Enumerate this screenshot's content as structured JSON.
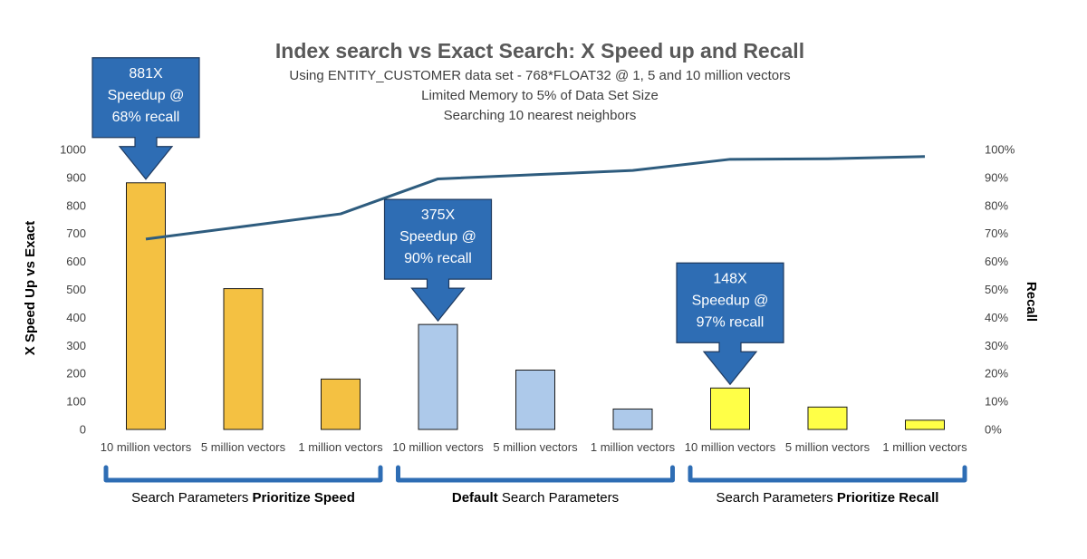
{
  "chart_data": {
    "type": "bar",
    "title": "Index search vs Exact Search: X Speed up and Recall",
    "subtitle_lines": [
      "Using ENTITY_CUSTOMER data set -  768*FLOAT32 @ 1, 5 and 10 million vectors",
      "Limited Memory to 5% of Data Set Size",
      "Searching 10 nearest neighbors"
    ],
    "categories": [
      "10 million vectors",
      "5 million vectors",
      "1 million vectors",
      "10 million vectors",
      "5 million vectors",
      "1 million vectors",
      "10 million vectors",
      "5 million vectors",
      "1 million vectors"
    ],
    "series": [
      {
        "type": "bar",
        "values": [
          881,
          503,
          180,
          375,
          212,
          73,
          148,
          80,
          33
        ],
        "colors": [
          "#F4C142",
          "#F4C142",
          "#F4C142",
          "#ADC9EA",
          "#ADC9EA",
          "#ADC9EA",
          "#FFFF47",
          "#FFFF47",
          "#FFFF47"
        ],
        "axis": "left"
      },
      {
        "type": "line",
        "values": [
          0.68,
          0.725,
          0.77,
          0.895,
          0.91,
          0.925,
          0.965,
          0.967,
          0.975
        ],
        "color": "#2E5C7E",
        "axis": "right"
      }
    ],
    "ylabel": "X Speed Up vs Exact",
    "ylim": [
      0,
      1000
    ],
    "yticks": [
      "0",
      "100",
      "200",
      "300",
      "400",
      "500",
      "600",
      "700",
      "800",
      "900",
      "1000"
    ],
    "y2label": "Recall",
    "y2lim": [
      0,
      1
    ],
    "y2ticks": [
      "0%",
      "10%",
      "20%",
      "30%",
      "40%",
      "50%",
      "60%",
      "70%",
      "80%",
      "90%",
      "100%"
    ],
    "grid": false,
    "groups": [
      {
        "parts": [
          {
            "text": "Search Parameters ",
            "bold": false
          },
          {
            "text": "Prioritize Speed",
            "bold": true
          }
        ]
      },
      {
        "parts": [
          {
            "text": "Default",
            "bold": true
          },
          {
            "text": " Search Parameters",
            "bold": false
          }
        ]
      },
      {
        "parts": [
          {
            "text": "Search Parameters ",
            "bold": false
          },
          {
            "text": "Prioritize Recall",
            "bold": true
          }
        ]
      }
    ],
    "annotations": [
      {
        "category_index": 0,
        "lines": [
          "881X",
          "Speedup @",
          "68% recall"
        ],
        "color": "#2E6DB4"
      },
      {
        "category_index": 3,
        "lines": [
          "375X",
          "Speedup @",
          "90% recall"
        ],
        "color": "#2E6DB4"
      },
      {
        "category_index": 6,
        "lines": [
          "148X",
          "Speedup @",
          "97% recall"
        ],
        "color": "#2E6DB4"
      }
    ],
    "bracket_color": "#2E6DB4"
  }
}
